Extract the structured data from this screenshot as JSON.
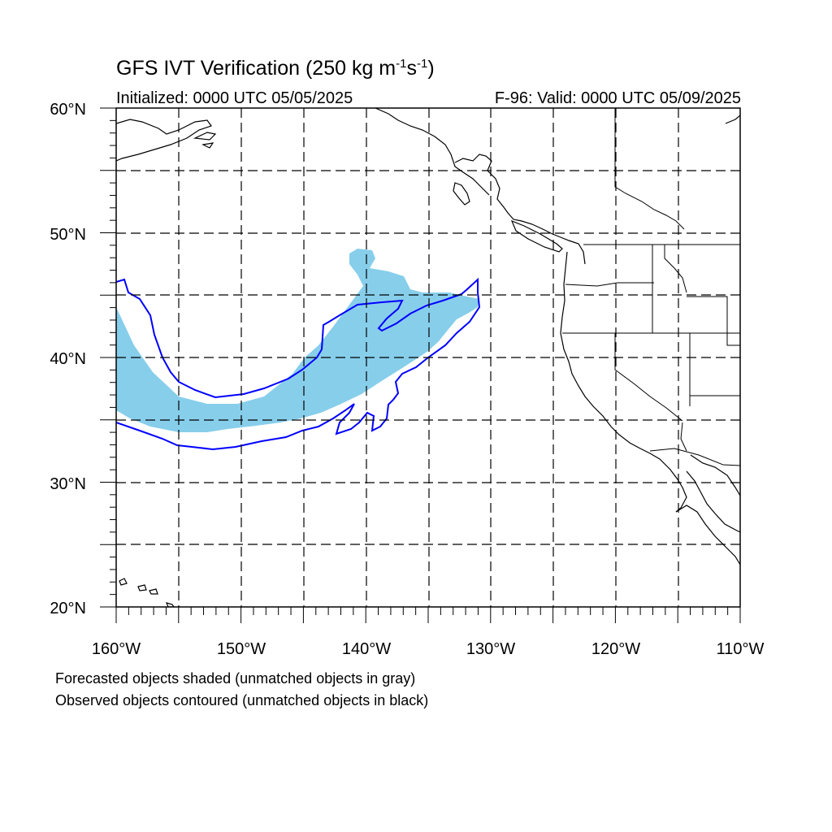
{
  "title": {
    "main_prefix": "GFS IVT Verification (250 kg m",
    "sup1": "-1",
    "mid": "s",
    "sup2": "-1",
    "suffix": ")",
    "initialized": "Initialized: 0000 UTC 05/05/2025",
    "valid": "F-96: Valid: 0000 UTC 05/09/2025"
  },
  "map": {
    "lon_range": [
      -160,
      -110
    ],
    "lat_range": [
      20,
      60
    ],
    "lon_labels": [
      "160°W",
      "150°W",
      "140°W",
      "130°W",
      "120°W",
      "110°W"
    ],
    "lat_labels": [
      "60°N",
      "50°N",
      "40°N",
      "30°N",
      "20°N"
    ],
    "grid_lons": [
      -155,
      -150,
      -145,
      -140,
      -135,
      -130,
      -125,
      -120,
      -115
    ],
    "grid_lats": [
      25,
      30,
      35,
      40,
      45,
      50,
      55
    ],
    "grid_style": "dashed",
    "colors": {
      "forecast_fill": "#87ceeb",
      "observed_contour": "#0000ff",
      "coastline": "#000000",
      "grid": "#000000"
    }
  },
  "notes": {
    "forecast": "Forecasted objects shaded (unmatched objects in gray)",
    "observed": "Observed objects contoured (unmatched objects in black)"
  }
}
